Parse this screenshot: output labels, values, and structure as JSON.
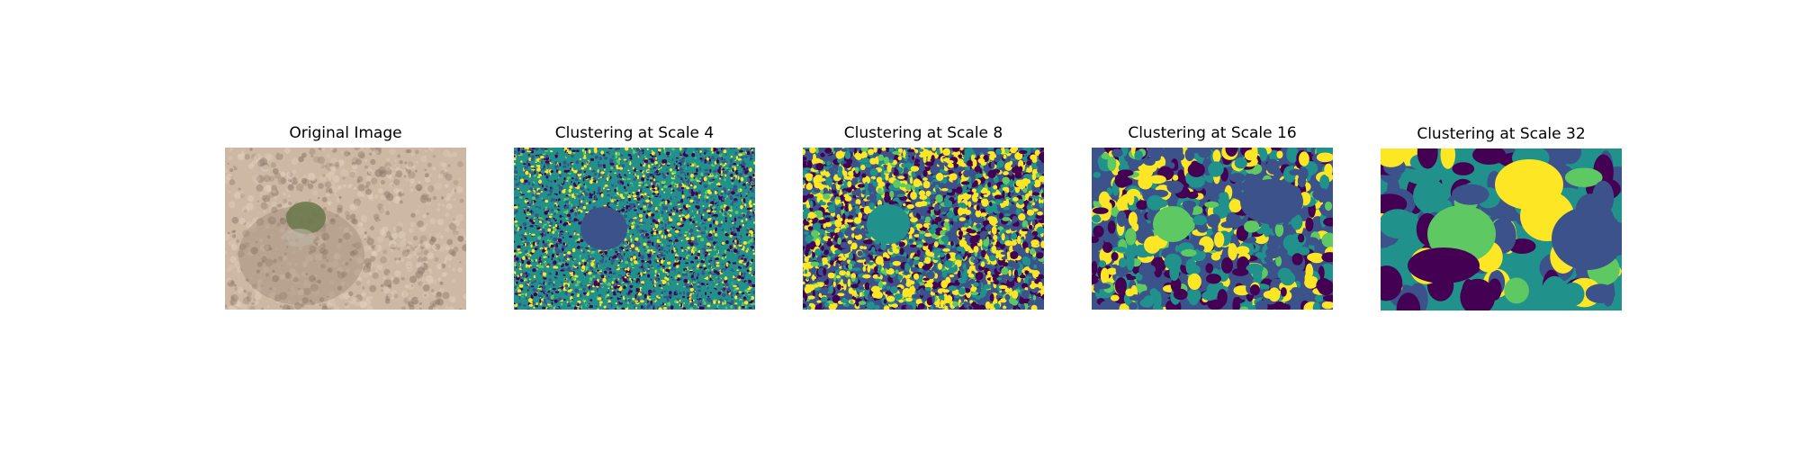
{
  "figure": {
    "panels": [
      {
        "title": "Original Image",
        "kind": "photo"
      },
      {
        "title": "Clustering at Scale 4",
        "kind": "cluster",
        "scale": 4
      },
      {
        "title": "Clustering at Scale 8",
        "kind": "cluster",
        "scale": 8
      },
      {
        "title": "Clustering at Scale 16",
        "kind": "cluster",
        "scale": 16
      },
      {
        "title": "Clustering at Scale 32",
        "kind": "cluster",
        "scale": 32
      }
    ],
    "palette": [
      "#440154",
      "#3b528b",
      "#21918c",
      "#5ec962",
      "#fde725"
    ],
    "photo_colors": {
      "base": "#cdb8a4",
      "light": "#e2d0bd",
      "shadow": "#8f7a6b",
      "shrub": "#6d7a4e"
    }
  }
}
